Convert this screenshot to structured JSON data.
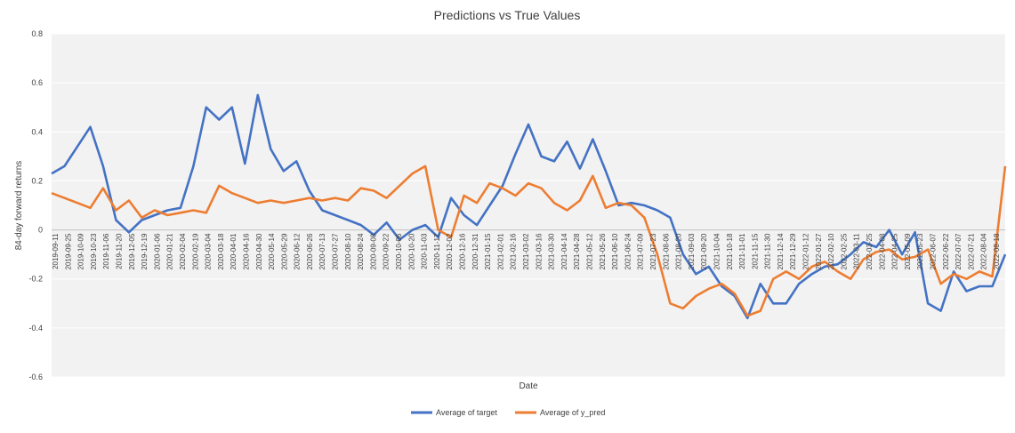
{
  "chart_data": {
    "type": "line",
    "title": "Predictions vs True Values",
    "xlabel": "Date",
    "ylabel": "84-day forward returns",
    "ylim": [
      -0.6,
      0.8
    ],
    "y_ticks": [
      "0.8",
      "0.6",
      "0.4",
      "0.2",
      "0",
      "-0.2",
      "-0.4",
      "-0.6"
    ],
    "x_tick_labels": [
      "2019-09-11",
      "2019-09-25",
      "2019-10-09",
      "2019-10-23",
      "2019-11-06",
      "2019-11-20",
      "2019-12-05",
      "2019-12-19",
      "2020-01-06",
      "2020-01-21",
      "2020-02-04",
      "2020-02-19",
      "2020-03-04",
      "2020-03-18",
      "2020-04-01",
      "2020-04-16",
      "2020-04-30",
      "2020-05-14",
      "2020-05-29",
      "2020-06-12",
      "2020-06-26",
      "2020-07-13",
      "2020-07-27",
      "2020-08-10",
      "2020-08-24",
      "2020-09-08",
      "2020-09-22",
      "2020-10-06",
      "2020-10-20",
      "2020-11-03",
      "2020-11-17",
      "2020-12-02",
      "2020-12-16",
      "2020-12-31",
      "2021-01-15",
      "2021-02-01",
      "2021-02-16",
      "2021-03-02",
      "2021-03-16",
      "2021-03-30",
      "2021-04-14",
      "2021-04-28",
      "2021-05-12",
      "2021-05-26",
      "2021-06-10",
      "2021-06-24",
      "2021-07-09",
      "2021-07-23",
      "2021-08-06",
      "2021-08-20",
      "2021-09-03",
      "2021-09-20",
      "2021-10-04",
      "2021-10-18",
      "2021-11-01",
      "2021-11-15",
      "2021-11-30",
      "2021-12-14",
      "2021-12-29",
      "2022-01-12",
      "2022-01-27",
      "2022-02-10",
      "2022-02-25",
      "2022-03-11",
      "2022-03-25",
      "2022-04-08",
      "2022-04-25",
      "2022-05-09",
      "2022-05-23",
      "2022-06-07",
      "2022-06-22",
      "2022-07-07",
      "2022-07-21",
      "2022-08-04",
      "2022-08-18"
    ],
    "grid": "horizontal only",
    "legend": "bottom",
    "series": [
      {
        "name": "Average of target",
        "color": "#4472C4",
        "values": [
          0.23,
          0.26,
          0.34,
          0.42,
          0.26,
          0.04,
          -0.01,
          0.04,
          0.06,
          0.08,
          0.09,
          0.26,
          0.5,
          0.45,
          0.5,
          0.27,
          0.55,
          0.33,
          0.24,
          0.28,
          0.16,
          0.08,
          0.06,
          0.04,
          0.02,
          -0.02,
          0.03,
          -0.04,
          0.0,
          0.02,
          -0.03,
          0.13,
          0.06,
          0.02,
          0.1,
          0.18,
          0.31,
          0.43,
          0.3,
          0.28,
          0.36,
          0.25,
          0.37,
          0.24,
          0.1,
          0.11,
          0.1,
          0.08,
          0.05,
          -0.1,
          -0.18,
          -0.15,
          -0.23,
          -0.27,
          -0.36,
          -0.22,
          -0.3,
          -0.3,
          -0.22,
          -0.18,
          -0.15,
          -0.14,
          -0.1,
          -0.05,
          -0.07,
          0.0,
          -0.1,
          -0.01,
          -0.3,
          -0.33,
          -0.17,
          -0.25,
          -0.23,
          -0.23,
          -0.1
        ]
      },
      {
        "name": "Average of y_pred",
        "color": "#ED7D31",
        "values": [
          0.15,
          0.13,
          0.11,
          0.09,
          0.17,
          0.08,
          0.12,
          0.05,
          0.08,
          0.06,
          0.07,
          0.08,
          0.07,
          0.18,
          0.15,
          0.13,
          0.11,
          0.12,
          0.11,
          0.12,
          0.13,
          0.12,
          0.13,
          0.12,
          0.17,
          0.16,
          0.13,
          0.18,
          0.23,
          0.26,
          0.0,
          -0.03,
          0.14,
          0.11,
          0.19,
          0.17,
          0.14,
          0.19,
          0.17,
          0.11,
          0.08,
          0.12,
          0.22,
          0.09,
          0.11,
          0.1,
          0.05,
          -0.1,
          -0.3,
          -0.32,
          -0.27,
          -0.24,
          -0.22,
          -0.26,
          -0.35,
          -0.33,
          -0.2,
          -0.17,
          -0.2,
          -0.15,
          -0.13,
          -0.17,
          -0.2,
          -0.12,
          -0.09,
          -0.08,
          -0.12,
          -0.11,
          -0.08,
          -0.22,
          -0.18,
          -0.2,
          -0.17,
          -0.19,
          0.26
        ]
      }
    ]
  }
}
